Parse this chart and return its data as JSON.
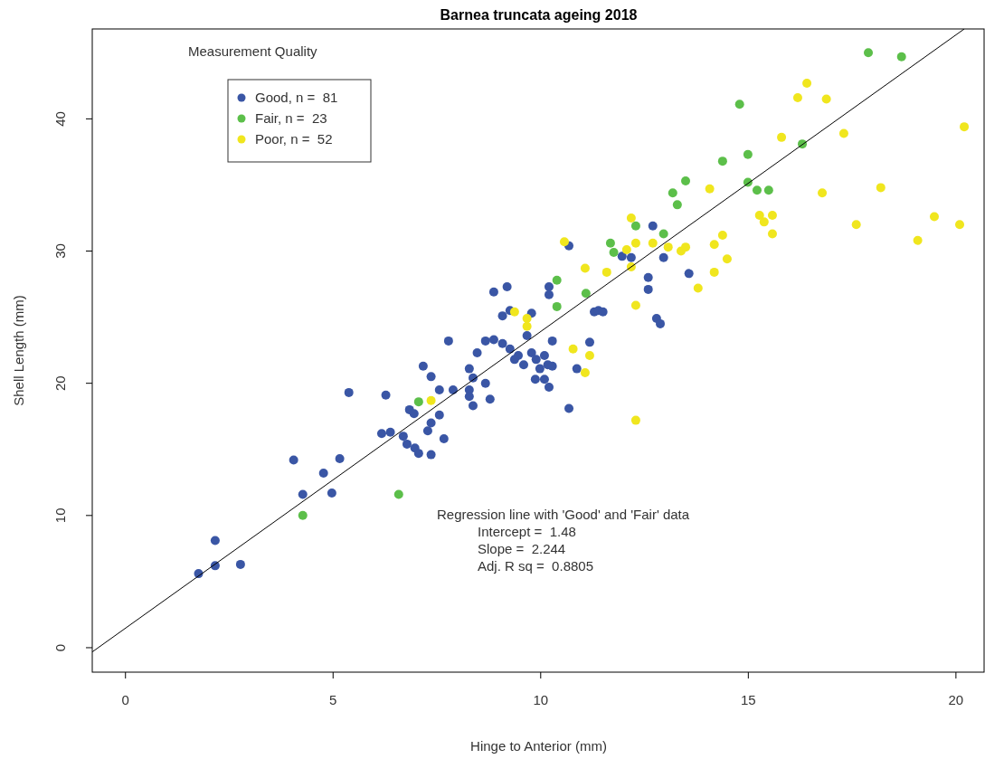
{
  "chart_data": {
    "type": "scatter",
    "title": "Barnea truncata ageing 2018",
    "xlabel": "Hinge to Anterior (mm)",
    "ylabel": "Shell Length (mm)",
    "legend_title": "Measurement Quality",
    "legend": "top left",
    "marker": "circle",
    "grid": false,
    "xlim": [
      -0.8,
      20.7
    ],
    "ylim": [
      -1.85,
      46.8
    ],
    "xticks": [
      0,
      5,
      10,
      15,
      20
    ],
    "yticks": [
      0,
      10,
      20,
      30,
      40
    ],
    "annotations": [
      "Regression line with 'Good' and 'Fair' data",
      "Intercept =  1.48",
      "Slope =  2.244",
      "Adj. R sq =  0.8805"
    ],
    "series": [
      {
        "name": "Good, n =  81",
        "color": "#3a56a5",
        "x": [
          7.17,
          7.36,
          7.56,
          7.89,
          6.84,
          6.95,
          7.56,
          7.36,
          7.28,
          7.67,
          6.17,
          6.38,
          6.69,
          6.78,
          6.97,
          7.06,
          7.36,
          5.38,
          6.27,
          4.05,
          5.16,
          4.77,
          4.27,
          4.97,
          2.16,
          2.16,
          2.77,
          1.76,
          8.87,
          9.19,
          10.2,
          10.2,
          9.26,
          9.08,
          9.78,
          9.67,
          11.29,
          11.39,
          11.5,
          7.78,
          8.67,
          8.87,
          9.08,
          9.26,
          9.46,
          9.37,
          9.59,
          9.78,
          9.89,
          10.09,
          10.17,
          10.28,
          9.98,
          10.28,
          11.18,
          10.87,
          8.47,
          8.28,
          8.37,
          8.67,
          8.28,
          8.28,
          8.37,
          8.78,
          9.87,
          10.09,
          10.2,
          10.68,
          12.7,
          11.96,
          12.18,
          12.96,
          10.68,
          12.59,
          12.59,
          13.57,
          12.79,
          12.88
        ],
        "values": [
          21.3,
          20.5,
          19.5,
          19.5,
          18.0,
          17.7,
          17.6,
          17.0,
          16.4,
          15.8,
          16.2,
          16.3,
          16.0,
          15.4,
          15.1,
          14.7,
          14.6,
          19.3,
          19.1,
          14.2,
          14.3,
          13.2,
          11.6,
          11.7,
          8.1,
          6.2,
          6.3,
          5.6,
          26.9,
          27.3,
          27.3,
          26.7,
          25.5,
          25.1,
          25.3,
          23.6,
          25.4,
          25.5,
          25.4,
          23.2,
          23.2,
          23.3,
          23.0,
          22.6,
          22.1,
          21.8,
          21.4,
          22.3,
          21.8,
          22.1,
          21.4,
          21.3,
          21.1,
          23.2,
          23.1,
          21.1,
          22.3,
          21.1,
          20.4,
          20.0,
          19.5,
          19.0,
          18.3,
          18.8,
          20.3,
          20.3,
          19.7,
          18.1,
          31.9,
          29.6,
          29.5,
          29.5,
          30.4,
          28.0,
          27.1,
          28.3,
          24.9,
          24.5
        ]
      },
      {
        "name": "Fair, n =  23",
        "color": "#5cbf4a",
        "x": [
          7.06,
          4.27,
          6.58,
          10.39,
          11.09,
          10.39,
          13.29,
          12.29,
          12.96,
          11.68,
          11.76,
          17.89,
          18.69,
          14.79,
          16.3,
          14.99,
          14.38,
          13.49,
          14.99,
          15.21,
          15.49,
          13.18
        ],
        "values": [
          18.6,
          10.0,
          11.6,
          27.8,
          26.8,
          25.8,
          33.5,
          31.9,
          31.3,
          30.6,
          29.9,
          45.0,
          44.7,
          41.1,
          38.1,
          37.3,
          36.8,
          35.3,
          35.2,
          34.6,
          34.6,
          34.4
        ]
      },
      {
        "name": "Poor, n =  52",
        "color": "#f0e61e",
        "x": [
          7.36,
          9.37,
          9.67,
          9.67,
          10.78,
          11.18,
          11.07,
          12.18,
          12.29,
          12.7,
          12.07,
          13.07,
          13.38,
          13.49,
          12.18,
          11.07,
          11.59,
          10.57,
          13.79,
          12.29,
          12.29,
          16.41,
          16.19,
          16.88,
          20.2,
          17.3,
          15.8,
          14.07,
          16.78,
          18.19,
          15.27,
          15.58,
          15.38,
          15.58,
          17.6,
          19.48,
          20.09,
          19.08,
          14.38,
          14.18,
          14.49,
          14.18
        ],
        "values": [
          18.7,
          25.4,
          24.9,
          24.3,
          22.6,
          22.1,
          20.8,
          32.5,
          30.6,
          30.6,
          30.1,
          30.3,
          30.0,
          30.3,
          28.8,
          28.7,
          28.4,
          30.7,
          27.2,
          25.9,
          17.2,
          42.7,
          41.6,
          41.5,
          39.4,
          38.9,
          38.6,
          34.7,
          34.4,
          34.8,
          32.7,
          32.7,
          32.2,
          31.3,
          32.0,
          32.6,
          32.0,
          30.8,
          31.2,
          30.5,
          29.4,
          28.4
        ]
      },
      {
        "type": "line",
        "marker": "none",
        "color": "#000000",
        "x": [
          -0.8,
          20.2
        ],
        "values": [
          -0.32,
          46.8
        ]
      }
    ]
  }
}
